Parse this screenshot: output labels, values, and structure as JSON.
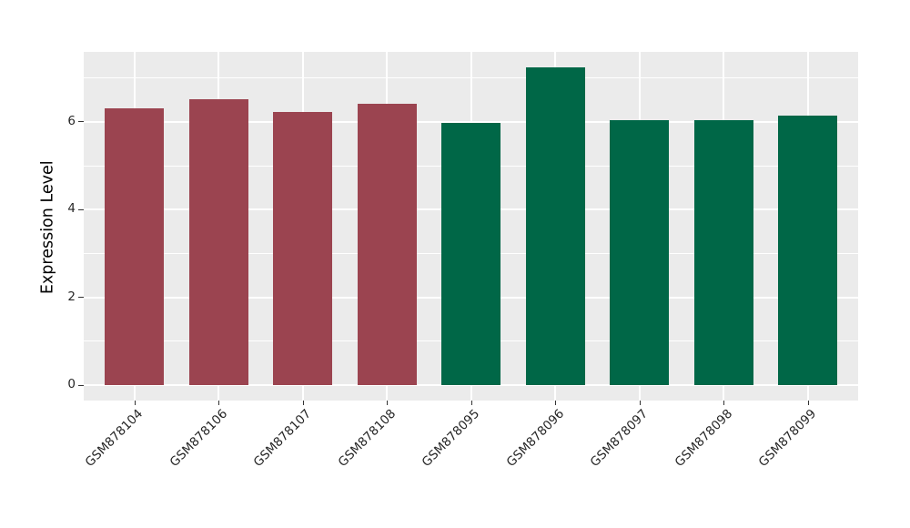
{
  "chart_data": {
    "type": "bar",
    "title": "",
    "ylabel": "Expression Level",
    "xlabel": "",
    "categories": [
      "GSM878104",
      "GSM878106",
      "GSM878107",
      "GSM878108",
      "GSM878095",
      "GSM878096",
      "GSM878097",
      "GSM878098",
      "GSM878099"
    ],
    "values": [
      6.31,
      6.52,
      6.22,
      6.41,
      5.98,
      7.24,
      6.04,
      6.04,
      6.15
    ],
    "bar_colors": [
      "#9B4450",
      "#9B4450",
      "#9B4450",
      "#9B4450",
      "#006747",
      "#006747",
      "#006747",
      "#006747",
      "#006747"
    ],
    "color_groups": [
      {
        "color": "#9B4450",
        "categories": [
          "GSM878104",
          "GSM878106",
          "GSM878107",
          "GSM878108"
        ]
      },
      {
        "color": "#006747",
        "categories": [
          "GSM878095",
          "GSM878096",
          "GSM878097",
          "GSM878098",
          "GSM878099"
        ]
      }
    ],
    "ylim": [
      0,
      7.6
    ],
    "yticks": [
      0,
      2,
      4,
      6
    ],
    "minor_yticks": [
      1,
      3,
      5,
      7
    ],
    "grid": true,
    "legend": "none",
    "panel_background": "#EBEBEB",
    "gridline_color": "#FFFFFF",
    "tick_label_color": "#262626",
    "x_tick_rotation_deg": 45
  }
}
